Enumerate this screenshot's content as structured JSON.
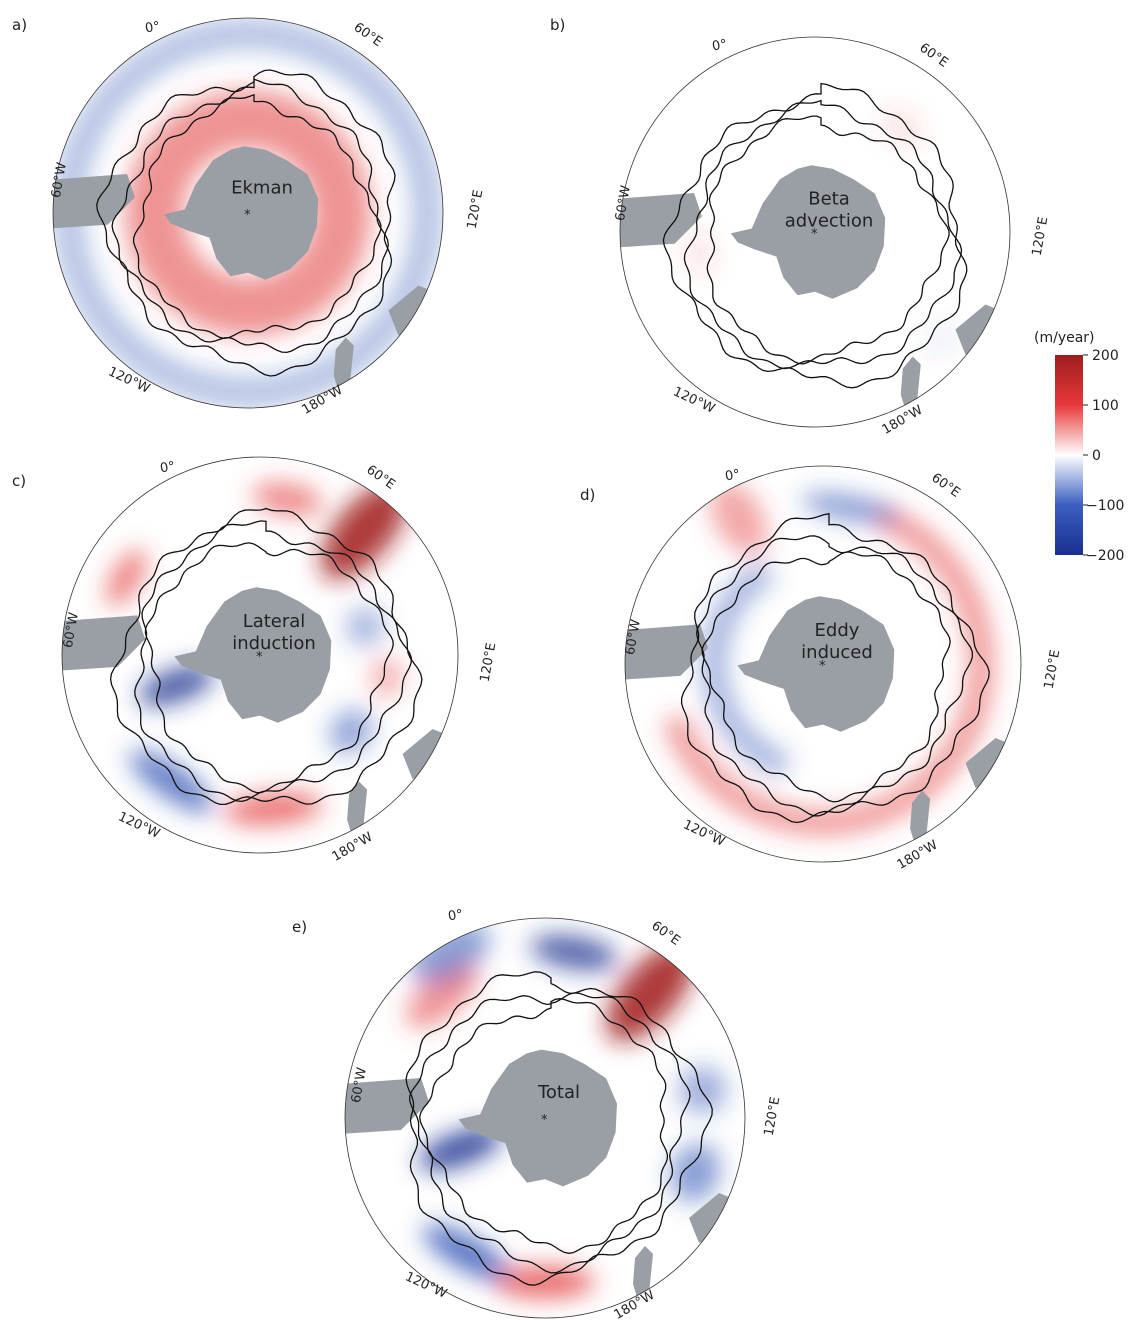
{
  "panels": [
    {
      "letter": "a)",
      "title_lines": [
        "Ekman"
      ],
      "lon_labels": {
        "top": "0°",
        "upper_right": "60°E",
        "right": "120°E",
        "left": "60°W",
        "lower_left": "120°W",
        "bottom": "180°W"
      },
      "field": "ekman"
    },
    {
      "letter": "b)",
      "title_lines": [
        "Beta",
        "advection"
      ],
      "lon_labels": {
        "top": "0°",
        "upper_right": "60°E",
        "right": "120°E",
        "left": "60°W",
        "lower_left": "120°W",
        "bottom": "180°W"
      },
      "field": "beta"
    },
    {
      "letter": "c)",
      "title_lines": [
        "Lateral",
        "induction"
      ],
      "lon_labels": {
        "top": "0°",
        "upper_right": "60°E",
        "right": "120°E",
        "left": "60°W",
        "lower_left": "120°W",
        "bottom": "180°W"
      },
      "field": "lateral"
    },
    {
      "letter": "d)",
      "title_lines": [
        "Eddy",
        "induced"
      ],
      "lon_labels": {
        "top": "0°",
        "upper_right": "60°E",
        "right": "120°E",
        "left": "60°W",
        "lower_left": "120°W",
        "bottom": "180°W"
      },
      "field": "eddy"
    },
    {
      "letter": "e)",
      "title_lines": [
        "Total"
      ],
      "lon_labels": {
        "top": "0°",
        "upper_right": "60°E",
        "right": "120°E",
        "left": "60°W",
        "lower_left": "120°W",
        "bottom": "180°W"
      },
      "field": "total"
    }
  ],
  "colorbar": {
    "unit_label": "(m/year)",
    "ticks": [
      "200",
      "100",
      "0",
      "−100",
      "−200"
    ],
    "range": [
      -200,
      200
    ],
    "colors": [
      "#9e1d1d",
      "#e8383a",
      "#ffffff",
      "#3b5fc0",
      "#1b2f8f"
    ]
  },
  "colors": {
    "land": "#9a9fa6",
    "front_lines": "#111111",
    "positive": "#e23a3a",
    "negative": "#2c4fb3"
  }
}
